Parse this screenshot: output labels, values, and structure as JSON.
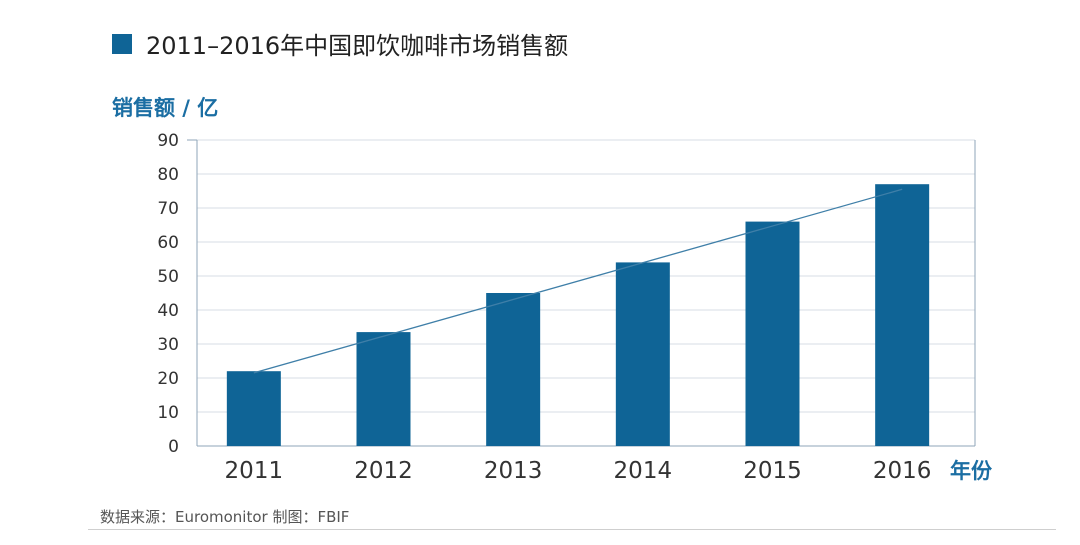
{
  "colors": {
    "bar": "#0f6496",
    "accent": "#1b6ea3",
    "grid": "#d7dee5",
    "axis": "#8fa5b8",
    "trend": "#3f7fa8",
    "text": "#333333"
  },
  "chart_data": {
    "type": "bar",
    "title": "2011–2016年中国即饮咖啡市场销售额",
    "xlabel": "年份",
    "ylabel": "销售额 / 亿",
    "categories": [
      "2011",
      "2012",
      "2013",
      "2014",
      "2015",
      "2016"
    ],
    "series": [
      {
        "values": [
          22,
          33.5,
          45,
          54,
          66,
          77
        ]
      }
    ],
    "trendline": {
      "from": 21.5,
      "to": 75.5
    },
    "ylim": [
      0,
      90
    ],
    "yticks": [
      "0",
      "10",
      "20",
      "30",
      "40",
      "50",
      "60",
      "70",
      "80",
      "90"
    ],
    "grid": true,
    "legend": "top-left"
  },
  "source_note": "数据来源：Euromonitor  制图：FBIF"
}
